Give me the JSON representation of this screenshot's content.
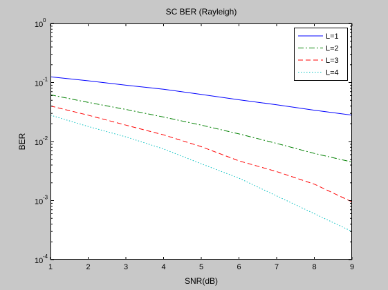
{
  "chart_data": {
    "type": "line",
    "title": "SC BER (Rayleigh)",
    "xlabel": "SNR(dB)",
    "ylabel": "BER",
    "x": [
      1,
      2,
      3,
      4,
      5,
      6,
      7,
      8,
      9
    ],
    "xlim": [
      1,
      9
    ],
    "xticks": [
      "1",
      "2",
      "3",
      "4",
      "5",
      "6",
      "7",
      "8",
      "9"
    ],
    "yscale": "log",
    "ylim": [
      0.0001,
      1
    ],
    "yticks": [
      {
        "value": 1,
        "base": "10",
        "exp": "0"
      },
      {
        "value": 0.1,
        "base": "10",
        "exp": "-1"
      },
      {
        "value": 0.01,
        "base": "10",
        "exp": "-2"
      },
      {
        "value": 0.001,
        "base": "10",
        "exp": "-3"
      },
      {
        "value": 0.0001,
        "base": "10",
        "exp": "-4"
      }
    ],
    "grid": false,
    "legend_position": "top-right",
    "series": [
      {
        "name": "L=1",
        "color": "#0000ff",
        "dash": "solid",
        "values": [
          0.125,
          0.107,
          0.09,
          0.077,
          0.063,
          0.051,
          0.042,
          0.034,
          0.028
        ]
      },
      {
        "name": "L=2",
        "color": "#008000",
        "dash": "dashdot",
        "values": [
          0.062,
          0.046,
          0.035,
          0.026,
          0.019,
          0.0135,
          0.0093,
          0.0063,
          0.0045
        ]
      },
      {
        "name": "L=3",
        "color": "#ff0000",
        "dash": "dashed",
        "values": [
          0.04,
          0.028,
          0.019,
          0.013,
          0.0082,
          0.0047,
          0.0031,
          0.0019,
          0.00095
        ]
      },
      {
        "name": "L=4",
        "color": "#00bfbf",
        "dash": "dotted",
        "values": [
          0.028,
          0.018,
          0.012,
          0.0075,
          0.0042,
          0.0024,
          0.0012,
          0.0006,
          0.0003
        ]
      }
    ]
  }
}
